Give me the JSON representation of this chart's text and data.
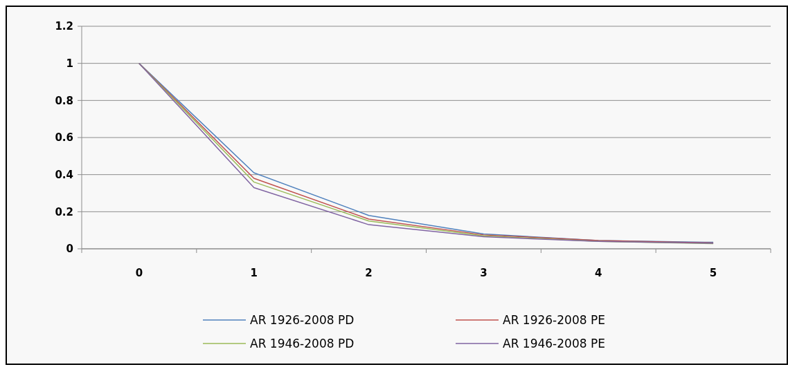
{
  "chart_data": {
    "type": "line",
    "categories": [
      "0",
      "1",
      "2",
      "3",
      "4",
      "5"
    ],
    "ylim": [
      0,
      1.2
    ],
    "yticks": [
      0,
      0.2,
      0.4,
      0.6,
      0.8,
      1,
      1.2
    ],
    "grid": "y",
    "legend": "bottom",
    "marker": "none",
    "line_style": "solid",
    "series": [
      {
        "name": "AR 1926-2008 PD",
        "color": "#4f81bd",
        "values": [
          1,
          0.41,
          0.18,
          0.08,
          0.045,
          0.035
        ]
      },
      {
        "name": "AR 1926-2008 PE",
        "color": "#c0504d",
        "values": [
          1,
          0.38,
          0.16,
          0.075,
          0.045,
          0.032
        ]
      },
      {
        "name": "AR 1946-2008 PD",
        "color": "#9bbb59",
        "values": [
          1,
          0.36,
          0.15,
          0.07,
          0.04,
          0.028
        ]
      },
      {
        "name": "AR 1946-2008 PE",
        "color": "#8064a2",
        "values": [
          1,
          0.33,
          0.13,
          0.065,
          0.04,
          0.03
        ]
      }
    ]
  }
}
